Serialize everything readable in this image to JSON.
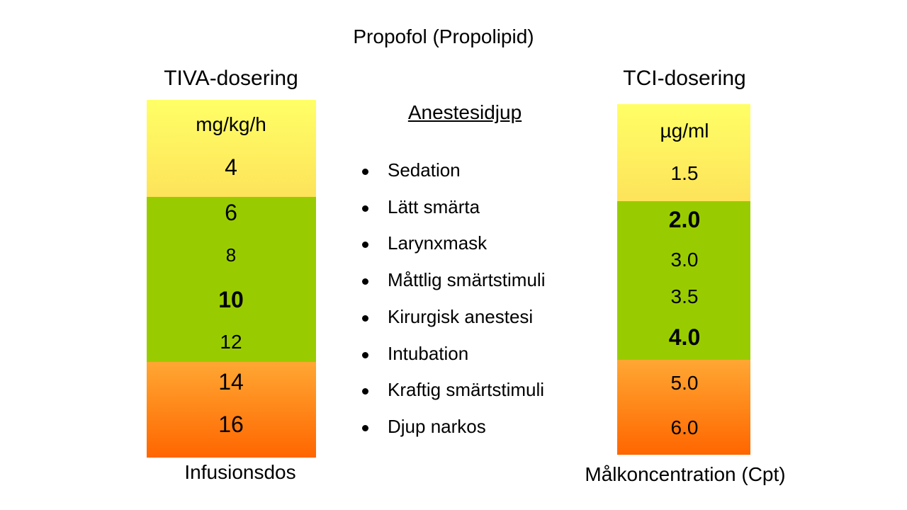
{
  "title": "Propofol (Propolipid)",
  "tiva": {
    "heading": "TIVA-dosering",
    "unit": "mg/kg/h",
    "values": [
      "4",
      "6",
      "8",
      "10",
      "12",
      "14",
      "16"
    ],
    "footer": "Infusionsdos"
  },
  "tci": {
    "heading": "TCI-dosering",
    "unit": "µg/ml",
    "values": [
      "1.5",
      "2.0",
      "3.0",
      "3.5",
      "4.0",
      "5.0",
      "6.0"
    ],
    "footer": "Målkoncentration (Cpt)"
  },
  "depth": {
    "heading": "Anestesidjup",
    "items": [
      "Sedation",
      "Lätt smärta",
      "Larynxmask",
      "Måttlig smärtstimuli",
      "Kirurgisk anestesi",
      "Intubation",
      "Kraftig smärtstimuli",
      "Djup narkos"
    ]
  },
  "colors": {
    "yellow": "#ffff66",
    "green": "#99cc00",
    "orange": "#ff6600"
  }
}
